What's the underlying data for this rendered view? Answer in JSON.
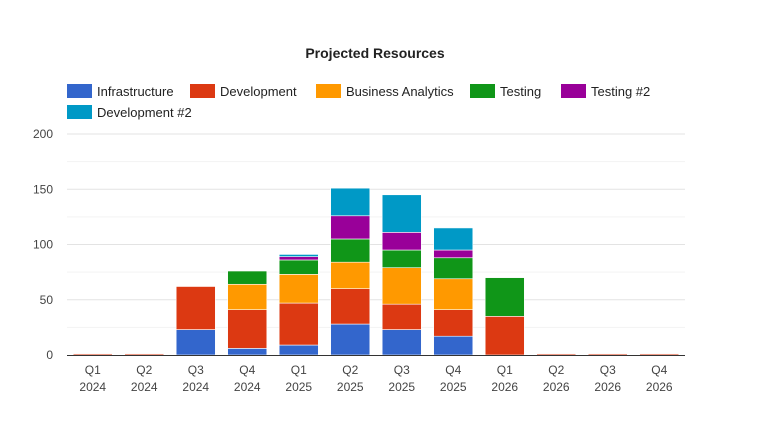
{
  "chart_data": {
    "type": "bar",
    "stacked": true,
    "title": "Projected Resources",
    "xlabel": "",
    "ylabel": "",
    "ylim": [
      0,
      200
    ],
    "yticks": [
      0,
      50,
      100,
      150,
      200
    ],
    "grid": true,
    "legend_position": "top",
    "categories": [
      [
        "Q1",
        "2024"
      ],
      [
        "Q2",
        "2024"
      ],
      [
        "Q3",
        "2024"
      ],
      [
        "Q4",
        "2024"
      ],
      [
        "Q1",
        "2025"
      ],
      [
        "Q2",
        "2025"
      ],
      [
        "Q3",
        "2025"
      ],
      [
        "Q4",
        "2025"
      ],
      [
        "Q1",
        "2026"
      ],
      [
        "Q2",
        "2026"
      ],
      [
        "Q3",
        "2026"
      ],
      [
        "Q4",
        "2026"
      ]
    ],
    "series": [
      {
        "name": "Infrastructure",
        "color": "#3366cc",
        "values": [
          0,
          0,
          23,
          6,
          9,
          28,
          23,
          17,
          0,
          0,
          0,
          0
        ]
      },
      {
        "name": "Development",
        "color": "#dc3912",
        "values": [
          1,
          1,
          39,
          35,
          38,
          32,
          23,
          24,
          35,
          1,
          1,
          1
        ]
      },
      {
        "name": "Business Analytics",
        "color": "#ff9900",
        "values": [
          0,
          0,
          0,
          23,
          26,
          24,
          33,
          28,
          0,
          0,
          0,
          0
        ]
      },
      {
        "name": "Testing",
        "color": "#109618",
        "values": [
          0,
          0,
          0,
          12,
          13,
          21,
          16,
          19,
          35,
          0,
          0,
          0
        ]
      },
      {
        "name": "Testing #2",
        "color": "#990099",
        "values": [
          0,
          0,
          0,
          0,
          3,
          21,
          16,
          7,
          0,
          0,
          0,
          0
        ]
      },
      {
        "name": "Development #2",
        "color": "#0099c6",
        "values": [
          0,
          0,
          0,
          0,
          2,
          25,
          34,
          20,
          0,
          0,
          0,
          0
        ]
      }
    ]
  }
}
